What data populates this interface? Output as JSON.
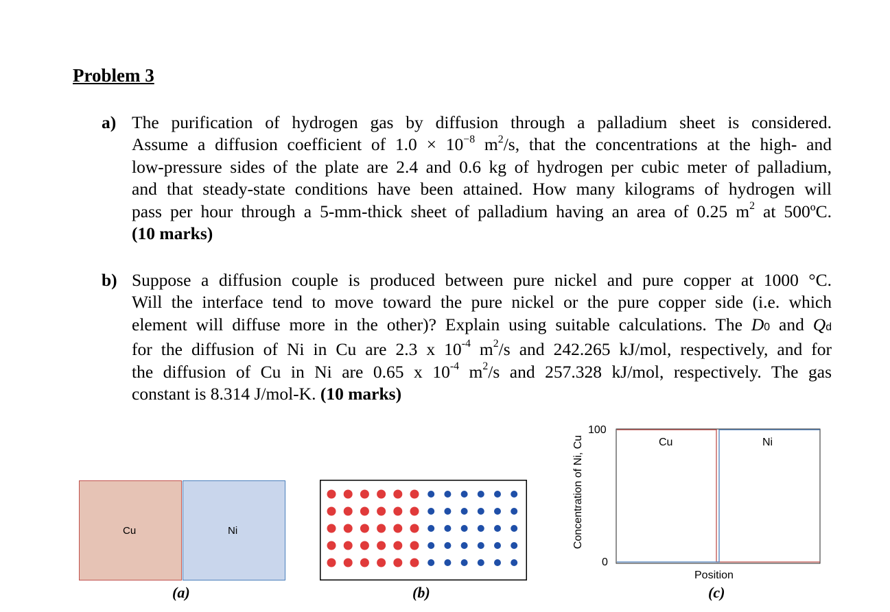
{
  "heading": "Problem 3",
  "part_a": {
    "label": "a)",
    "lines": [
      "The purification of hydrogen gas by diffusion through a palladium sheet is considered.",
      "Assume a diffusion coefficient of 1.0 × 10",
      "−8",
      " m",
      "2",
      "/s, that the concentrations at the high- and",
      "low-pressure sides of the plate are 2.4 and 0.6 kg of hydrogen per cubic meter of palladium,",
      "and that steady-state conditions have been attained. How many kilograms of hydrogen will",
      "pass per hour through a 5-mm-thick sheet of palladium having an area of 0.25 m",
      "2",
      " at 500ºC."
    ],
    "marks": "(10 marks)"
  },
  "part_b": {
    "label": "b)",
    "line1": "Suppose a diffusion couple is produced between pure nickel and pure copper at 1000 °C.",
    "line2": "Will the interface tend to move toward the pure nickel or the pure copper side (i.e. which",
    "line3a": "element will diffuse more in the other)? Explain using suitable calculations. The ",
    "d0": "D",
    "d0sub": "0",
    "and": " and ",
    "qd": "Q",
    "qdsub": "d",
    "line4a": "for the diffusion of Ni in Cu are 2.3 x 10",
    "exp1": "-4",
    "m": " m",
    "sq": "2",
    "line4b": "/s and 242.265 kJ/mol, respectively, and for",
    "line5a": "the diffusion of Cu in Ni are 0.65 x 10",
    "exp2": "-4",
    "line5b": "/s and 257.328 kJ/mol, respectively. The gas",
    "line6": "constant is 8.314 J/mol-K. ",
    "marks": "(10 marks)"
  },
  "figure": {
    "a": {
      "left_label": "Cu",
      "right_label": "Ni",
      "caption": "(a)"
    },
    "b": {
      "caption": "(b)",
      "rows": 5,
      "red_cols": 6,
      "blue_cols": 6
    },
    "c": {
      "ylabel": "Concentration of Ni, Cu",
      "xlabel": "Position",
      "y_top": "100",
      "y_bottom": "0",
      "left_label": "Cu",
      "right_label": "Ni",
      "caption": "(c)"
    },
    "colors": {
      "cu": "#c0504d",
      "ni": "#4a7ebb",
      "cu_fill": "#e6c3b5",
      "ni_fill": "#c9d6ec"
    }
  }
}
